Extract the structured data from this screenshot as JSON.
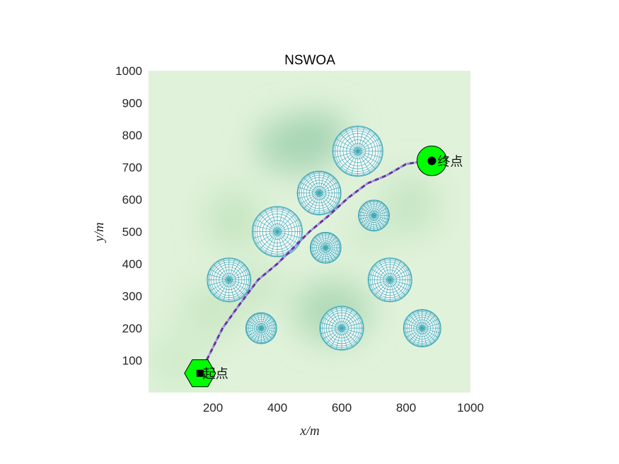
{
  "chart_data": {
    "type": "scatter",
    "title": "NSWOA",
    "xlabel": "x/m",
    "ylabel": "y/m",
    "xlim": [
      0,
      1000
    ],
    "ylim": [
      0,
      1000
    ],
    "x_ticks": [
      "200",
      "400",
      "600",
      "800",
      "1000"
    ],
    "y_ticks": [
      "100",
      "200",
      "300",
      "400",
      "500",
      "600",
      "700",
      "800",
      "900",
      "1000"
    ],
    "grid": false,
    "background": "terrain heat map (light green with darker green bands)",
    "obstacles": [
      {
        "x": 650,
        "y": 750,
        "r": 78
      },
      {
        "x": 530,
        "y": 620,
        "r": 68
      },
      {
        "x": 700,
        "y": 550,
        "r": 48
      },
      {
        "x": 400,
        "y": 500,
        "r": 78
      },
      {
        "x": 550,
        "y": 450,
        "r": 48
      },
      {
        "x": 250,
        "y": 350,
        "r": 68
      },
      {
        "x": 750,
        "y": 350,
        "r": 68
      },
      {
        "x": 350,
        "y": 200,
        "r": 48
      },
      {
        "x": 600,
        "y": 200,
        "r": 68
      },
      {
        "x": 850,
        "y": 200,
        "r": 58
      }
    ],
    "start": {
      "x": 160,
      "y": 60,
      "label": "起点"
    },
    "goal": {
      "x": 880,
      "y": 720,
      "label": "终点"
    },
    "path": {
      "x": [
        160,
        185,
        230,
        280,
        340,
        400,
        450,
        500,
        560,
        620,
        680,
        740,
        800,
        850,
        880
      ],
      "y": [
        60,
        110,
        200,
        270,
        350,
        400,
        450,
        500,
        550,
        605,
        650,
        675,
        710,
        718,
        720
      ]
    },
    "colors": {
      "obstacle": "#3ea8b5",
      "path_a": "#7030a0",
      "path_b": "#8a8fe0",
      "marker_fill": "#00ff00",
      "terrain_light": "#e0f2da",
      "terrain_dark": "#a9d6b4"
    }
  }
}
